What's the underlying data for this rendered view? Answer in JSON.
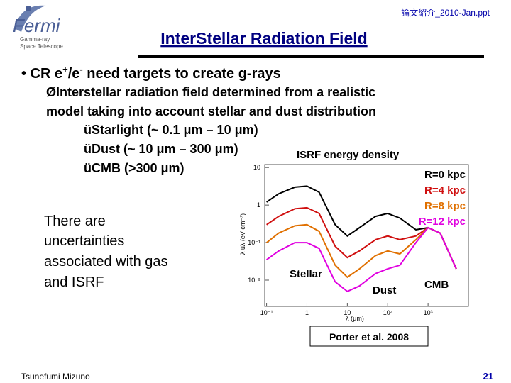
{
  "header": {
    "file": "論文紹介_2010-Jan.ppt",
    "title": "InterStellar Radiation Field"
  },
  "logo": {
    "name": "Fermi",
    "lines": [
      "Gamma-ray",
      "Space Telescope"
    ]
  },
  "bullet": {
    "parts": [
      "• CR e",
      "+",
      "/e",
      "-",
      " need targets to create g-rays"
    ]
  },
  "sub": {
    "lines": [
      "ØInterstellar radiation field determined from a realistic",
      "model taking into account stellar and dust distribution"
    ]
  },
  "checks": [
    "üStarlight (~ 0.1 μm – 10 μm)",
    "üDust (~ 10 μm – 300 μm)",
    "üCMB (>300 μm)"
  ],
  "note": [
    "There are",
    "uncertainties",
    "associated with gas",
    "and ISRF"
  ],
  "chart_data": {
    "type": "line",
    "title": "ISRF energy density",
    "x_label": "λ (μm)",
    "y_label": "λ uλ (eV cm⁻³)",
    "log_x": true,
    "log_y": true,
    "x": [
      0.1,
      0.2,
      0.5,
      1,
      2,
      5,
      10,
      20,
      50,
      100,
      200,
      500,
      1000,
      2000,
      5000
    ],
    "series": [
      {
        "name": "R=0 kpc",
        "color": "#000000",
        "values": [
          1.2,
          2,
          3,
          3.2,
          2.2,
          0.3,
          0.15,
          0.25,
          0.5,
          0.6,
          0.45,
          0.22,
          0.25,
          0.18,
          0.02
        ]
      },
      {
        "name": "R=4 kpc",
        "color": "#d01010",
        "values": [
          0.3,
          0.5,
          0.8,
          0.85,
          0.6,
          0.08,
          0.04,
          0.06,
          0.12,
          0.15,
          0.12,
          0.15,
          0.25,
          0.18,
          0.02
        ]
      },
      {
        "name": "R=8 kpc",
        "color": "#e07000",
        "values": [
          0.1,
          0.18,
          0.28,
          0.3,
          0.2,
          0.025,
          0.012,
          0.02,
          0.045,
          0.06,
          0.05,
          0.12,
          0.25,
          0.18,
          0.02
        ]
      },
      {
        "name": "R=12 kpc",
        "color": "#e000e0",
        "values": [
          0.035,
          0.06,
          0.1,
          0.1,
          0.07,
          0.009,
          0.005,
          0.007,
          0.015,
          0.02,
          0.025,
          0.1,
          0.25,
          0.18,
          0.02
        ]
      }
    ],
    "xlim": [
      0.09,
      10000
    ],
    "ylim": [
      0.002,
      12
    ],
    "xticks": [
      {
        "value": 0.1,
        "label": "10⁻¹"
      },
      1,
      10,
      {
        "value": 100,
        "label": "10²"
      },
      {
        "value": 1000,
        "label": "10³"
      }
    ],
    "yticks": [
      10,
      1,
      {
        "value": 0.1,
        "label": "10⁻¹"
      },
      {
        "value": 0.01,
        "label": "10⁻²"
      }
    ],
    "annotations": [
      "Stellar",
      "Dust",
      "CMB"
    ],
    "source": "Porter et al. 2008"
  },
  "footer": {
    "author": "Tsunefumi Mizuno",
    "page": "21"
  }
}
